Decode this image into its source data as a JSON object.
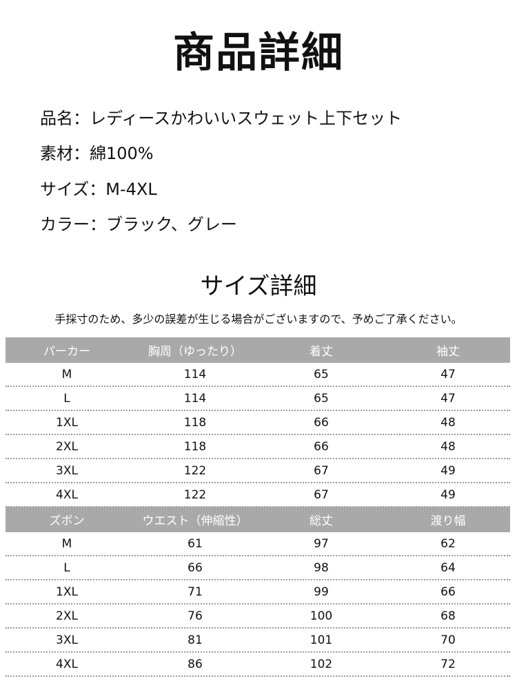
{
  "title": "商品詳細",
  "info": [
    "品名：レディースかわいいスウェット上下セット",
    "素材：綿100%",
    "サイズ：M-4XL",
    "カラー：ブラック、グレー"
  ],
  "size_title": "サイズ詳細",
  "note": "手採寸のため、多少の誤差が生じる場合がございますので、予めご了承ください。",
  "tables": [
    {
      "headers": [
        "パーカー",
        "胸周（ゆったり）",
        "着丈",
        "袖丈"
      ],
      "rows": [
        [
          "M",
          "114",
          "65",
          "47"
        ],
        [
          "L",
          "114",
          "65",
          "47"
        ],
        [
          "1XL",
          "118",
          "66",
          "48"
        ],
        [
          "2XL",
          "118",
          "66",
          "48"
        ],
        [
          "3XL",
          "122",
          "67",
          "49"
        ],
        [
          "4XL",
          "122",
          "67",
          "49"
        ]
      ]
    },
    {
      "headers": [
        "ズボン",
        "ウエスト（伸縮性）",
        "総丈",
        "渡り幅"
      ],
      "rows": [
        [
          "M",
          "61",
          "97",
          "62"
        ],
        [
          "L",
          "66",
          "98",
          "64"
        ],
        [
          "1XL",
          "71",
          "99",
          "66"
        ],
        [
          "2XL",
          "76",
          "100",
          "68"
        ],
        [
          "3XL",
          "81",
          "101",
          "70"
        ],
        [
          "4XL",
          "86",
          "102",
          "72"
        ]
      ]
    }
  ],
  "colors": {
    "header_bg": "#a9a9a9",
    "header_text": "#ffffff"
  }
}
